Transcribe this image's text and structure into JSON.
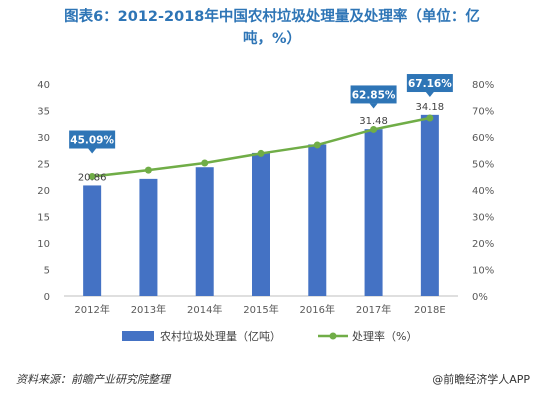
{
  "title_line1": "图表6：2012-2018年中国农村垃圾处理量及处理率（单位：亿",
  "title_line2": "吨，%）",
  "chart_data": {
    "type": "bar+line",
    "categories": [
      "2012年",
      "2013年",
      "2014年",
      "2015年",
      "2016年",
      "2017年",
      "2018E"
    ],
    "series": [
      {
        "name": "农村垃圾处理量（亿吨）",
        "type": "bar",
        "axis": "left",
        "color": "#4472c4",
        "values": [
          20.86,
          22.1,
          24.3,
          27.0,
          28.6,
          31.48,
          34.18
        ]
      },
      {
        "name": "处理率（%）",
        "type": "line",
        "axis": "right",
        "color": "#70ad47",
        "values": [
          45.09,
          47.5,
          50.2,
          53.8,
          57.0,
          62.85,
          67.16
        ]
      }
    ],
    "y_left": {
      "min": 0,
      "max": 40,
      "step": 5,
      "ticks": [
        "0",
        "5",
        "10",
        "15",
        "20",
        "25",
        "30",
        "35",
        "40"
      ]
    },
    "y_right": {
      "min": 0,
      "max": 80,
      "step": 10,
      "ticks": [
        "0%",
        "10%",
        "20%",
        "30%",
        "40%",
        "50%",
        "60%",
        "70%",
        "80%"
      ]
    },
    "bar_labels": [
      {
        "index": 0,
        "text": "20.86"
      },
      {
        "index": 5,
        "text": "31.48"
      },
      {
        "index": 6,
        "text": "34.18"
      }
    ],
    "rate_callouts": [
      {
        "index": 0,
        "text": "45.09%"
      },
      {
        "index": 5,
        "text": "62.85%"
      },
      {
        "index": 6,
        "text": "67.16%"
      }
    ],
    "grid": false,
    "legend_position": "bottom"
  },
  "footer": {
    "source": "资料来源：前瞻产业研究院整理",
    "brand": "@前瞻经济学人APP"
  }
}
